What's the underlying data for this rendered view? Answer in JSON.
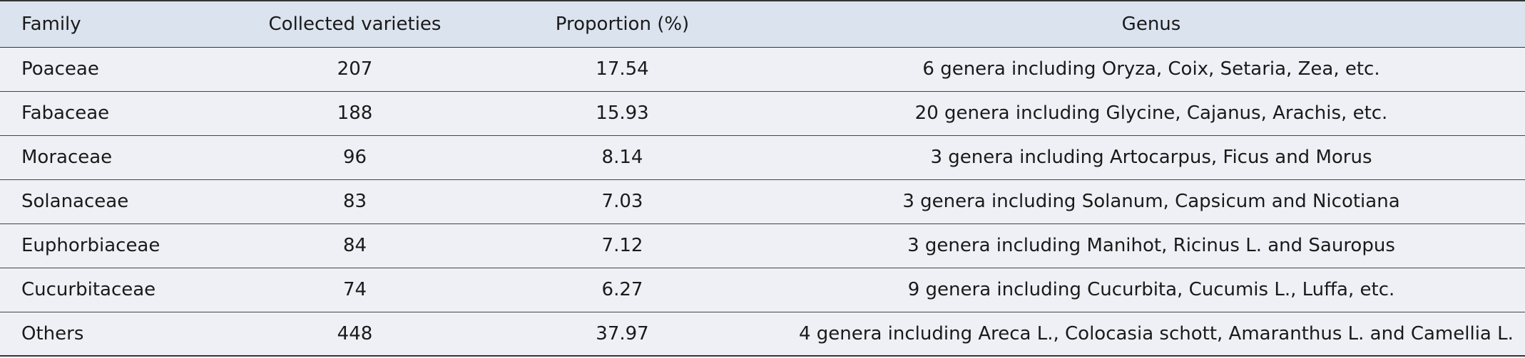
{
  "table": {
    "header": [
      "Family",
      "Collected varieties",
      "Proportion (%)",
      "Genus"
    ],
    "rows": [
      [
        "Poaceae",
        207,
        17.54,
        "6 genera including Oryza, Coix, Setaria, Zea, etc."
      ],
      [
        "Fabaceae",
        188,
        15.93,
        "20 genera including Glycine, Cajanus, Arachis, etc."
      ],
      [
        "Moraceae",
        96,
        8.14,
        "3 genera including Artocarpus, Ficus and Morus"
      ],
      [
        "Solanaceae",
        83,
        7.03,
        "3 genera including Solanum, Capsicum and Nicotiana"
      ],
      [
        "Euphorbiaceae",
        84,
        7.12,
        "3 genera including Manihot, Ricinus L. and Sauropus"
      ],
      [
        "Cucurbitaceae",
        74,
        6.27,
        "9 genera including Cucurbita, Cucumis L., Luffa, etc."
      ],
      [
        "Others",
        448,
        37.97,
        "4 genera including Areca L., Colocasia schott, Amaranthus L. and Camellia L."
      ]
    ]
  }
}
